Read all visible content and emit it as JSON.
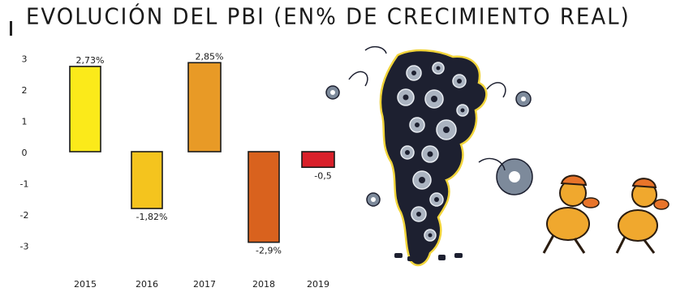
{
  "title": "EVOLUCIÓN DEL PBI (EN% DE CRECIMIENTO REAL)",
  "chart_data": {
    "type": "bar",
    "title": "EVOLUCIÓN DEL PBI (EN% DE CRECIMIENTO REAL)",
    "categories": [
      "2015",
      "2016",
      "2017",
      "2018",
      "2019"
    ],
    "values": [
      2.73,
      -1.82,
      2.85,
      -2.9,
      -0.5
    ],
    "data_labels": [
      "2,73%",
      "-1,82%",
      "2,85%",
      "-2,9%",
      "-0,5"
    ],
    "yticks": [
      "3",
      "2",
      "1",
      "0",
      "-1",
      "-2",
      "-3"
    ],
    "ylim": [
      -3,
      3
    ],
    "grid": false,
    "legend": "none",
    "colors": [
      "#fbea1a",
      "#f4c41e",
      "#e89a26",
      "#d9621e",
      "#d9202a"
    ]
  },
  "illustration": {
    "description_icon": "gear-map-argentina-icon",
    "characters_icon": "cartoon-mice-icon"
  }
}
